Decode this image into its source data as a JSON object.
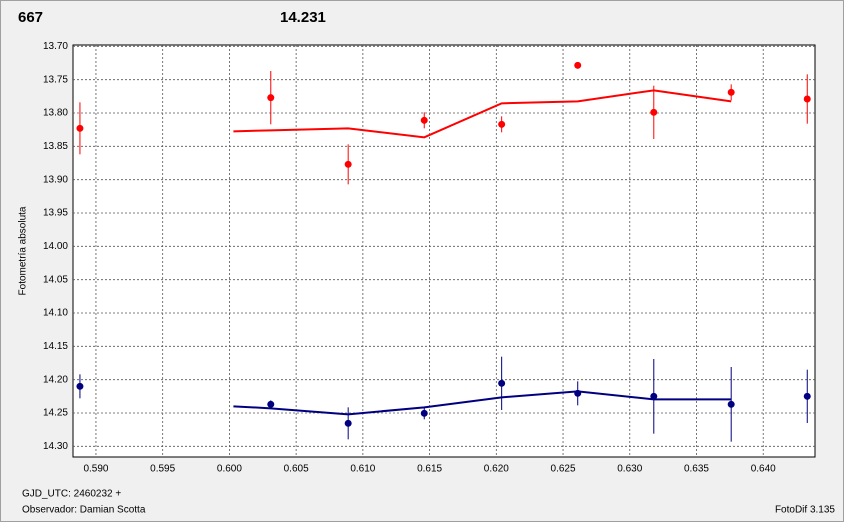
{
  "chart_data": {
    "type": "scatter",
    "y_label": "Fotometría absoluta",
    "footer_left_1": "GJD_UTC: 2460232 +",
    "footer_left_2": "Observador: Damian Scotta",
    "footer_right": "FotoDif 3.135",
    "inverted_y": true,
    "grid": true,
    "xlim": [
      0.58828,
      0.64388
    ],
    "ylim": [
      13.698,
      14.316
    ],
    "xticks": [
      {
        "value": 0.59,
        "label": "0.590"
      },
      {
        "value": 0.595,
        "label": "0.595"
      },
      {
        "value": 0.6,
        "label": "0.600"
      },
      {
        "value": 0.605,
        "label": "0.605"
      },
      {
        "value": 0.61,
        "label": "0.610"
      },
      {
        "value": 0.615,
        "label": "0.615"
      },
      {
        "value": 0.62,
        "label": "0.620"
      },
      {
        "value": 0.625,
        "label": "0.625"
      },
      {
        "value": 0.63,
        "label": "0.630"
      },
      {
        "value": 0.635,
        "label": "0.635"
      },
      {
        "value": 0.64,
        "label": "0.640"
      }
    ],
    "yticks": [
      {
        "value": 13.7,
        "label": "13.70"
      },
      {
        "value": 13.75,
        "label": "13.75"
      },
      {
        "value": 13.8,
        "label": "13.80"
      },
      {
        "value": 13.85,
        "label": "13.85"
      },
      {
        "value": 13.9,
        "label": "13.90"
      },
      {
        "value": 13.95,
        "label": "13.95"
      },
      {
        "value": 14.0,
        "label": "14.00"
      },
      {
        "value": 14.05,
        "label": "14.05"
      },
      {
        "value": 14.1,
        "label": "14.10"
      },
      {
        "value": 14.15,
        "label": "14.15"
      },
      {
        "value": 14.2,
        "label": "14.20"
      },
      {
        "value": 14.25,
        "label": "14.25"
      },
      {
        "value": 14.3,
        "label": "14.30"
      }
    ],
    "series": [
      {
        "name": "667",
        "color": "#ff0000",
        "x": [
          0.5888,
          0.6031,
          0.6089,
          0.6146,
          0.6204,
          0.6261,
          0.6318,
          0.6376,
          0.6433
        ],
        "values": [
          13.823,
          13.777,
          13.877,
          13.811,
          13.817,
          13.7285,
          13.799,
          13.769,
          13.779
        ],
        "errors": [
          0.039,
          0.04,
          0.03,
          0.012,
          0.012,
          0,
          0.04,
          0.012,
          0.037
        ],
        "line_x": [
          0.6003,
          0.6031,
          0.6089,
          0.6146,
          0.6204,
          0.6261,
          0.6318,
          0.6376
        ],
        "line_values": [
          13.8275,
          13.826,
          13.823,
          13.8365,
          13.7855,
          13.7825,
          13.766,
          13.7825
        ]
      },
      {
        "name": "14.231",
        "color": "#000080",
        "x": [
          0.5888,
          0.6031,
          0.6089,
          0.6146,
          0.6204,
          0.6261,
          0.6318,
          0.6376,
          0.6433
        ],
        "values": [
          14.21,
          14.237,
          14.2655,
          14.2505,
          14.2055,
          14.2205,
          14.225,
          14.237,
          14.225
        ],
        "errors": [
          0.018,
          0.006,
          0.024,
          0.009,
          0.04,
          0.018,
          0.056,
          0.056,
          0.04
        ],
        "line_x": [
          0.6003,
          0.6031,
          0.6089,
          0.6146,
          0.6204,
          0.6261,
          0.6318,
          0.6376
        ],
        "line_values": [
          14.24,
          14.243,
          14.252,
          14.2415,
          14.2265,
          14.2175,
          14.2295,
          14.2295
        ]
      }
    ]
  }
}
